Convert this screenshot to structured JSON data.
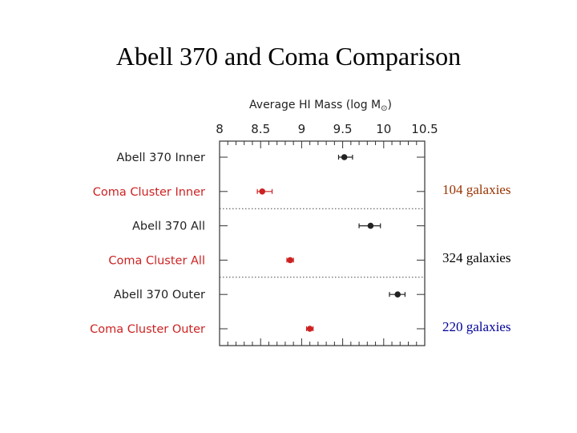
{
  "slide": {
    "title": "Abell 370 and Coma Comparison"
  },
  "chart_data": {
    "type": "scatter",
    "title": "Abell 370 and Coma Comparison",
    "xlabel_prefix": "Average HI Mass (log M",
    "xlabel_symbol": "⊙",
    "xlabel_suffix": ")",
    "xlim": [
      8,
      10.5
    ],
    "xticks": [
      "8",
      "8.5",
      "9",
      "9.5",
      "10",
      "10.5"
    ],
    "xtick_values": [
      8,
      8.5,
      9,
      9.5,
      10,
      10.5
    ],
    "axis_position": "top",
    "grid": false,
    "rows": [
      {
        "label": "Abell 370 Inner",
        "value": 9.52,
        "err_low": 9.45,
        "err_high": 9.62,
        "color": "#222222"
      },
      {
        "label": "Coma Cluster Inner",
        "value": 8.52,
        "err_low": 8.46,
        "err_high": 8.64,
        "color": "#cc2222"
      },
      {
        "label": "Abell 370 All",
        "value": 9.84,
        "err_low": 9.7,
        "err_high": 9.96,
        "color": "#222222"
      },
      {
        "label": "Coma Cluster All",
        "value": 8.86,
        "err_low": 8.82,
        "err_high": 8.9,
        "color": "#cc2222"
      },
      {
        "label": "Abell 370 Outer",
        "value": 10.17,
        "err_low": 10.07,
        "err_high": 10.26,
        "color": "#222222"
      },
      {
        "label": "Coma Cluster Outer",
        "value": 9.1,
        "err_low": 9.06,
        "err_high": 9.14,
        "color": "#cc2222"
      }
    ],
    "separators_after_rows": [
      1,
      3
    ],
    "annotations": [
      {
        "text": "104 galaxies",
        "color": "#993300",
        "row": 1
      },
      {
        "text": "324 galaxies",
        "color": "#000000",
        "row": 3
      },
      {
        "text": "220 galaxies",
        "color": "#000099",
        "row": 5
      }
    ]
  }
}
